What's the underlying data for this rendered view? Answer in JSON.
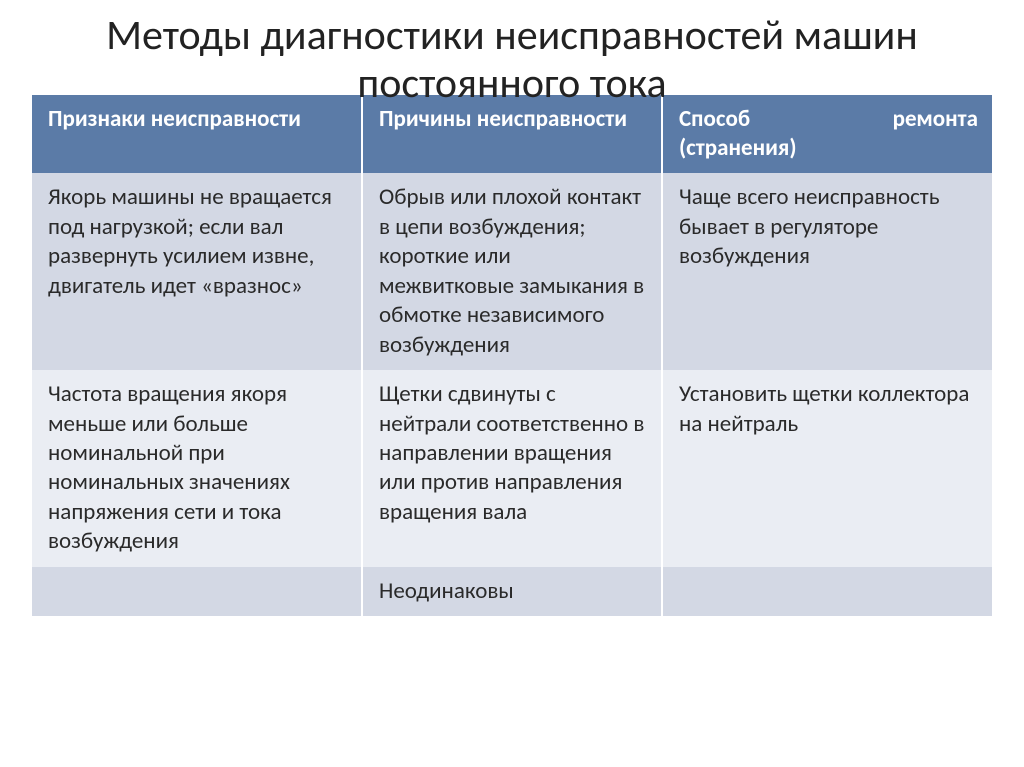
{
  "title": "Методы диагностики неисправностей машин постоянного тока",
  "table": {
    "header_bg": "#5b7ba7",
    "header_color": "#ffffff",
    "row_alt_bg_a": "#d3d8e4",
    "row_alt_bg_b": "#eaedf3",
    "columns": {
      "c1": "Признаки неисправности",
      "c2": "Причины неисправности",
      "c3a": "Способ",
      "c3b": "ремонта",
      "c3c": "(странения)"
    },
    "rows": [
      {
        "c1": "Якорь машины не вращается под нагрузкой; если вал развернуть усилием извне, двигатель идет «вразнос»",
        "c2": "Обрыв или плохой контакт в цепи возбуждения; короткие или межвитковые замыкания в обмотке независимого возбуждения",
        "c3": "Чаще всего неисправность бывает в регуляторе возбуждения"
      },
      {
        "c1": "Частота вращения якоря меньше или больше номинальной при номинальных значениях напряжения сети и тока возбуждения",
        "c2": "Щетки сдвинуты с нейтрали соответственно в направлении вращения или против направления вращения вала",
        "c3": "Установить щетки коллектора на нейтраль"
      },
      {
        "c1": "",
        "c2": "Неодинаковы",
        "c3": ""
      }
    ]
  }
}
